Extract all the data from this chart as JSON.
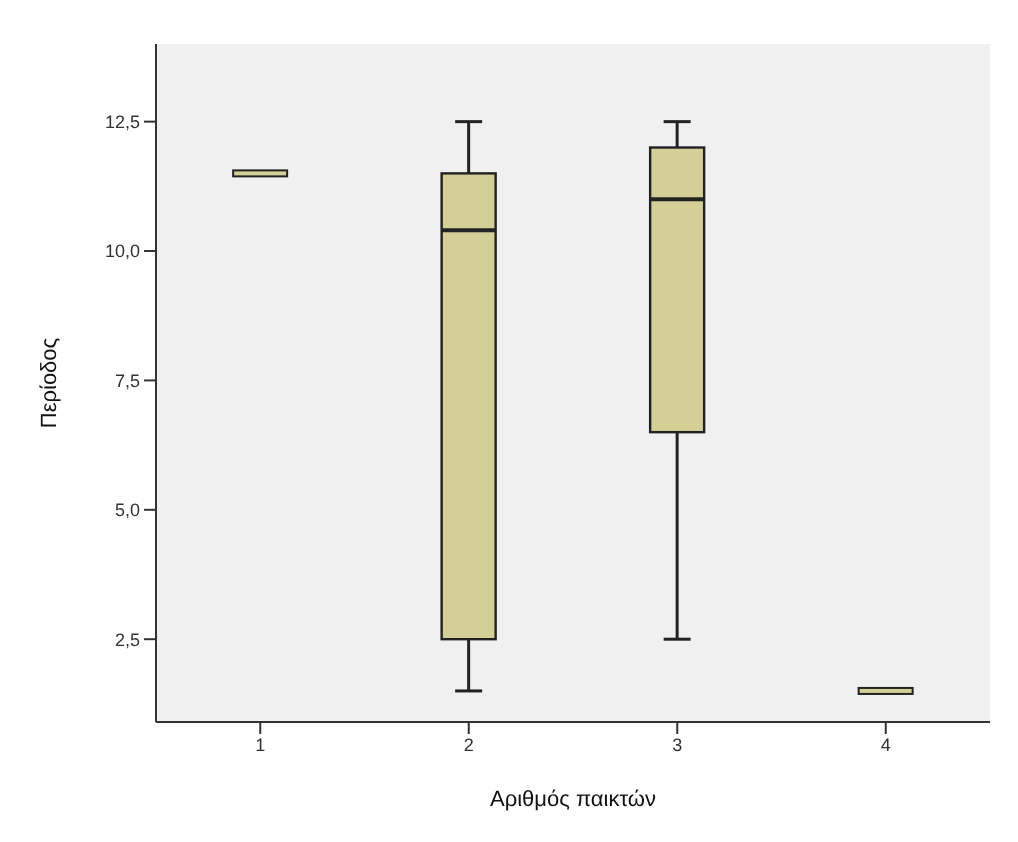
{
  "chart_data": {
    "type": "box",
    "xlabel": "Αριθμός παικτών",
    "ylabel": "Περίοδος",
    "categories": [
      "1",
      "2",
      "3",
      "4"
    ],
    "color": "#d3cf97",
    "boxes": [
      {
        "low": 11.5,
        "q1": 11.5,
        "median": 11.5,
        "q3": 11.5,
        "high": 11.5
      },
      {
        "low": 1.5,
        "q1": 2.5,
        "median": 10.4,
        "q3": 11.5,
        "high": 12.5
      },
      {
        "low": 2.5,
        "q1": 6.5,
        "median": 11,
        "q3": 12,
        "high": 12.5
      },
      {
        "low": 1.5,
        "q1": 1.5,
        "median": 1.5,
        "q3": 1.5,
        "high": 1.5
      }
    ],
    "ylim": [
      0.9,
      14
    ],
    "yticks": [
      {
        "value": 2.5,
        "label": "2,5"
      },
      {
        "value": 5,
        "label": "5,0"
      },
      {
        "value": 7.5,
        "label": "7,5"
      },
      {
        "value": 10,
        "label": "10,0"
      },
      {
        "value": 12.5,
        "label": "12,5"
      }
    ],
    "grid": false
  }
}
